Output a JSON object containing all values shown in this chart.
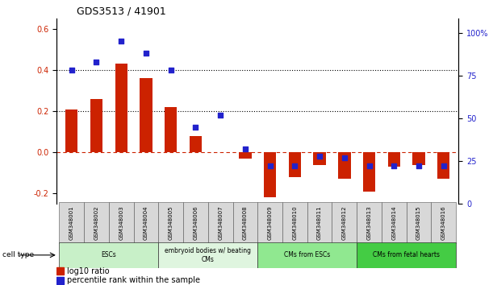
{
  "title": "GDS3513 / 41901",
  "samples": [
    "GSM348001",
    "GSM348002",
    "GSM348003",
    "GSM348004",
    "GSM348005",
    "GSM348006",
    "GSM348007",
    "GSM348008",
    "GSM348009",
    "GSM348010",
    "GSM348011",
    "GSM348012",
    "GSM348013",
    "GSM348014",
    "GSM348015",
    "GSM348016"
  ],
  "log10_ratio": [
    0.21,
    0.26,
    0.43,
    0.36,
    0.22,
    0.08,
    0.0,
    -0.03,
    -0.22,
    -0.12,
    -0.06,
    -0.13,
    -0.19,
    -0.07,
    -0.06,
    -0.13
  ],
  "percentile_rank": [
    78,
    83,
    95,
    88,
    78,
    45,
    52,
    32,
    22,
    22,
    28,
    27,
    22,
    22,
    22,
    22
  ],
  "cell_types": [
    {
      "label": "ESCs",
      "start": 0,
      "end": 3,
      "color": "#c8f0c8"
    },
    {
      "label": "embryoid bodies w/ beating\nCMs",
      "start": 4,
      "end": 7,
      "color": "#dff5df"
    },
    {
      "label": "CMs from ESCs",
      "start": 8,
      "end": 11,
      "color": "#90e890"
    },
    {
      "label": "CMs from fetal hearts",
      "start": 12,
      "end": 15,
      "color": "#44cc44"
    }
  ],
  "bar_color": "#cc2200",
  "scatter_color": "#2222cc",
  "ylim_left": [
    -0.25,
    0.65
  ],
  "ylim_right": [
    0,
    108.33
  ],
  "yticks_left": [
    -0.2,
    0.0,
    0.2,
    0.4,
    0.6
  ],
  "yticks_right": [
    0,
    25,
    50,
    75,
    100
  ],
  "hline_y": [
    0.2,
    0.4
  ],
  "zero_line_y": 0.0,
  "background_color": "#ffffff",
  "tick_label_color_left": "#cc2200",
  "tick_label_color_right": "#2222cc"
}
